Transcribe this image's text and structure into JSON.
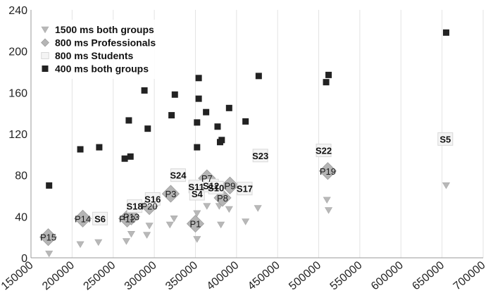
{
  "chart_data": {
    "type": "scatter",
    "title": "",
    "xlabel": "",
    "ylabel": "",
    "xlim": [
      150000,
      700000
    ],
    "ylim": [
      0,
      240
    ],
    "x_ticks": [
      150000,
      200000,
      250000,
      300000,
      350000,
      400000,
      450000,
      500000,
      550000,
      600000,
      650000,
      700000
    ],
    "y_ticks": [
      0,
      40,
      80,
      120,
      160,
      200,
      240
    ],
    "x_tick_labels": [
      "150000",
      "200000",
      "250000",
      "300000",
      "350000",
      "400000",
      "450000",
      "500000",
      "550000",
      "600000",
      "650000",
      "700000"
    ],
    "y_tick_labels": [
      "0",
      "40",
      "80",
      "120",
      "160",
      "200",
      "240"
    ],
    "grid": "vertical",
    "legend_position": "top-left",
    "series": [
      {
        "name": "1500 ms both groups",
        "marker": "triangle-down",
        "color": "#b8b8b8",
        "points": [
          [
            172000,
            4
          ],
          [
            210000,
            13
          ],
          [
            232000,
            15
          ],
          [
            266000,
            16
          ],
          [
            272000,
            23
          ],
          [
            291000,
            22
          ],
          [
            294000,
            31
          ],
          [
            319000,
            32
          ],
          [
            324000,
            38
          ],
          [
            352000,
            18
          ],
          [
            352000,
            43
          ],
          [
            364000,
            50
          ],
          [
            379000,
            50
          ],
          [
            381000,
            32
          ],
          [
            391000,
            47
          ],
          [
            411000,
            35
          ],
          [
            426000,
            48
          ],
          [
            510000,
            56
          ],
          [
            512000,
            46
          ],
          [
            655000,
            70
          ]
        ]
      },
      {
        "name": "800 ms Professionals",
        "marker": "diamond",
        "color": "#b5b5b5",
        "points": [
          {
            "x": 171000,
            "y": 20,
            "label": "P15"
          },
          {
            "x": 213000,
            "y": 38,
            "label": "P14"
          },
          {
            "x": 267000,
            "y": 38,
            "label": "P12"
          },
          {
            "x": 272000,
            "y": 40,
            "label": "P13"
          },
          {
            "x": 294000,
            "y": 50,
            "label": "P20"
          },
          {
            "x": 320000,
            "y": 62,
            "label": "P3"
          },
          {
            "x": 350000,
            "y": 33,
            "label": "P1"
          },
          {
            "x": 364000,
            "y": 77,
            "label": "P7"
          },
          {
            "x": 383000,
            "y": 58,
            "label": "P8"
          },
          {
            "x": 392000,
            "y": 70,
            "label": "P9"
          },
          {
            "x": 511000,
            "y": 84,
            "label": "P19"
          }
        ]
      },
      {
        "name": "800 ms Students",
        "marker": "square-open",
        "color": "#f4f4f4",
        "points": [
          {
            "x": 234000,
            "y": 38,
            "label": "S6"
          },
          {
            "x": 276000,
            "y": 50,
            "label": "S18"
          },
          {
            "x": 298000,
            "y": 57,
            "label": "S16"
          },
          {
            "x": 329000,
            "y": 80,
            "label": "S24"
          },
          {
            "x": 351000,
            "y": 69,
            "label": "S11"
          },
          {
            "x": 352000,
            "y": 62,
            "label": "S4"
          },
          {
            "x": 369000,
            "y": 70,
            "label": "S12"
          },
          {
            "x": 375000,
            "y": 68,
            "label": "S10"
          },
          {
            "x": 410000,
            "y": 67,
            "label": "S17"
          },
          {
            "x": 429000,
            "y": 99,
            "label": "S23"
          },
          {
            "x": 506000,
            "y": 104,
            "label": "S22"
          },
          {
            "x": 654000,
            "y": 115,
            "label": "S5"
          }
        ]
      },
      {
        "name": "400 ms both groups",
        "marker": "square-filled",
        "color": "#222222",
        "points": [
          [
            172000,
            70
          ],
          [
            210000,
            105
          ],
          [
            233000,
            107
          ],
          [
            264000,
            96
          ],
          [
            269000,
            133
          ],
          [
            271000,
            98
          ],
          [
            288000,
            162
          ],
          [
            292000,
            125
          ],
          [
            321000,
            138
          ],
          [
            325000,
            158
          ],
          [
            352000,
            131
          ],
          [
            352000,
            107
          ],
          [
            354000,
            174
          ],
          [
            354000,
            154
          ],
          [
            363000,
            141
          ],
          [
            377000,
            127
          ],
          [
            380000,
            112
          ],
          [
            382000,
            114
          ],
          [
            391000,
            145
          ],
          [
            411000,
            132
          ],
          [
            427000,
            176
          ],
          [
            509000,
            170
          ],
          [
            512000,
            177
          ],
          [
            655000,
            218
          ]
        ]
      }
    ]
  }
}
